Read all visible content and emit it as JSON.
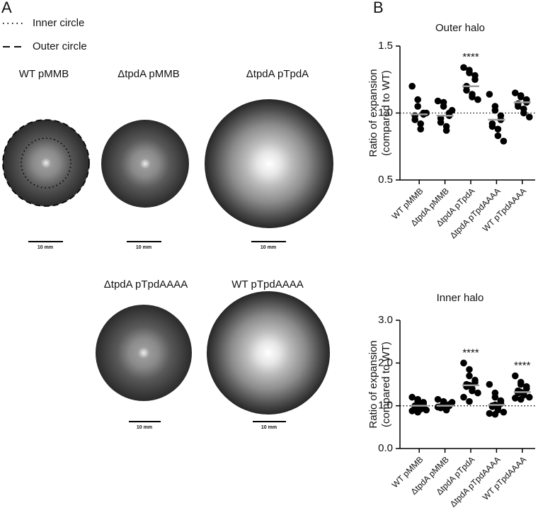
{
  "panels": {
    "a": "A",
    "b": "B"
  },
  "panel_a": {
    "legend": [
      "Inner circle",
      "Outer circle"
    ],
    "plates": [
      {
        "label": "WT pMMB",
        "scale": "10 mm"
      },
      {
        "label": "ΔtpdA pMMB",
        "scale": "10 mm"
      },
      {
        "label": "ΔtpdA pTpdA",
        "scale": "10 mm"
      },
      {
        "label": "ΔtpdA pTpdAAAA",
        "scale": "10 mm"
      },
      {
        "label": "WT pTpdAAAA",
        "scale": "10 mm"
      }
    ]
  },
  "chart_data": [
    {
      "type": "dot",
      "title": "Outer halo",
      "ylabel": [
        "Ratio of expansion",
        "(compared to WT)"
      ],
      "categories": [
        "WT pMMB",
        "ΔtpdA pMMB",
        "ΔtpdA pTpdA",
        "ΔtpdA pTpdAAAA",
        "WT pTpdAAAA"
      ],
      "groups": [
        [
          1.2,
          1.1,
          1.05,
          1.0,
          0.99,
          0.98,
          0.95,
          0.92,
          0.88,
          1.0
        ],
        [
          1.09,
          1.08,
          1.05,
          1.0,
          0.98,
          0.96,
          0.93,
          0.9,
          0.87,
          1.02
        ],
        [
          1.34,
          1.32,
          1.3,
          1.28,
          1.25,
          1.2,
          1.17,
          1.14,
          1.12,
          1.1
        ],
        [
          1.14,
          1.05,
          1.02,
          0.98,
          0.95,
          0.92,
          0.9,
          0.88,
          0.83,
          0.79
        ],
        [
          1.15,
          1.13,
          1.12,
          1.1,
          1.08,
          1.07,
          1.05,
          1.03,
          1.0,
          0.97
        ]
      ],
      "means": [
        0.99,
        0.98,
        1.2,
        0.95,
        1.08
      ],
      "annotations": [
        null,
        null,
        "****",
        null,
        null
      ],
      "reference_line": 1,
      "color": "#000000",
      "mean_color": "#9e9e9e",
      "ylim": [
        0.5,
        1.5
      ],
      "yticks": [
        0.5,
        {
          "value": 1,
          "label": "1.0"
        },
        1.5
      ]
    },
    {
      "type": "dot",
      "title": "Inner halo",
      "ylabel": [
        "Ratio of expansion",
        "(compared to WT)"
      ],
      "categories": [
        "WT pMMB",
        "ΔtpdA pMMB",
        "ΔtpdA pTpdA",
        "ΔtpdA pTpdAAAA",
        "WT pTpdAAAA"
      ],
      "groups": [
        [
          1.2,
          1.15,
          1.1,
          1.05,
          1.0,
          1.0,
          0.98,
          0.95,
          0.92,
          0.9,
          0.88,
          0.85,
          1.02,
          1.08
        ],
        [
          1.15,
          1.1,
          1.05,
          1.03,
          1.0,
          0.98,
          0.95,
          0.92,
          0.9,
          1.08,
          0.97,
          1.0
        ],
        [
          2.0,
          1.85,
          1.7,
          1.6,
          1.55,
          1.5,
          1.45,
          1.4,
          1.35,
          1.3,
          1.2,
          1.1,
          1.48
        ],
        [
          1.5,
          1.3,
          1.2,
          1.1,
          1.05,
          1.0,
          0.98,
          0.95,
          0.9,
          0.85,
          0.82,
          0.8,
          1.02,
          1.12
        ],
        [
          1.7,
          1.55,
          1.5,
          1.45,
          1.4,
          1.35,
          1.3,
          1.28,
          1.25,
          1.2,
          1.18,
          1.15,
          1.32
        ]
      ],
      "means": [
        1.0,
        1.0,
        1.48,
        1.02,
        1.32
      ],
      "annotations": [
        null,
        null,
        "****",
        null,
        "****"
      ],
      "reference_line": 1,
      "color": "#000000",
      "mean_color": "#9e9e9e",
      "ylim": [
        0,
        3
      ],
      "yticks": [
        {
          "value": 0,
          "label": "0.0"
        },
        {
          "value": 1,
          "label": "1.0"
        },
        {
          "value": 2,
          "label": "2.0"
        },
        {
          "value": 3,
          "label": "3.0"
        }
      ]
    }
  ]
}
